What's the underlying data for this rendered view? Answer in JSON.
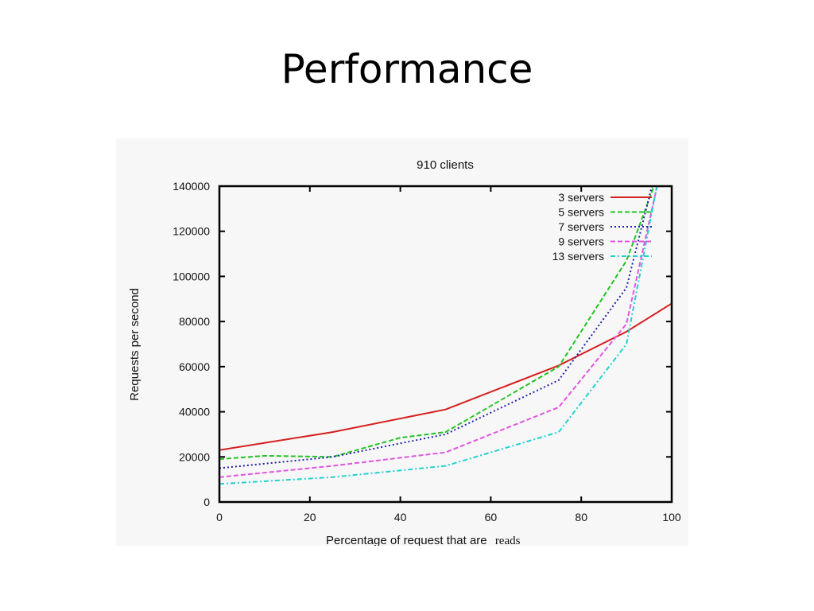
{
  "slide": {
    "title": "Performance"
  },
  "chart_data": {
    "type": "line",
    "title": "910 clients",
    "xlabel_main": "Percentage of request that are",
    "xlabel_tail": "reads",
    "ylabel": "Requests per second",
    "xlim": [
      0,
      100
    ],
    "ylim": [
      0,
      140000
    ],
    "xticks": [
      0,
      20,
      40,
      60,
      80,
      100
    ],
    "yticks": [
      0,
      20000,
      40000,
      60000,
      80000,
      100000,
      120000,
      140000
    ],
    "grid": false,
    "legend_position": "top-right",
    "series": [
      {
        "name": "3 servers",
        "color": "#d62020",
        "dash": "solid",
        "x": [
          0,
          25,
          50,
          75,
          90,
          100
        ],
        "y": [
          23000,
          31000,
          41000,
          60500,
          75500,
          88000
        ]
      },
      {
        "name": "5 servers",
        "color": "#22c422",
        "dash": "dashed",
        "x": [
          0,
          10,
          25,
          40,
          50,
          75,
          90,
          97
        ],
        "y": [
          19000,
          20500,
          20000,
          28500,
          31000,
          60000,
          107000,
          145000
        ]
      },
      {
        "name": "7 servers",
        "color": "#2222aa",
        "dash": "dotted",
        "x": [
          0,
          25,
          50,
          75,
          90,
          96
        ],
        "y": [
          15000,
          20000,
          30000,
          54000,
          95000,
          143000
        ]
      },
      {
        "name": "9 servers",
        "color": "#e055e0",
        "dash": "dashed",
        "x": [
          0,
          25,
          50,
          75,
          90,
          97
        ],
        "y": [
          11000,
          16000,
          22000,
          42000,
          79000,
          142000
        ]
      },
      {
        "name": "13 servers",
        "color": "#22d0d0",
        "dash": "dashdot",
        "x": [
          0,
          25,
          50,
          75,
          90,
          97
        ],
        "y": [
          8000,
          11000,
          16000,
          31000,
          70000,
          143000
        ]
      }
    ]
  }
}
